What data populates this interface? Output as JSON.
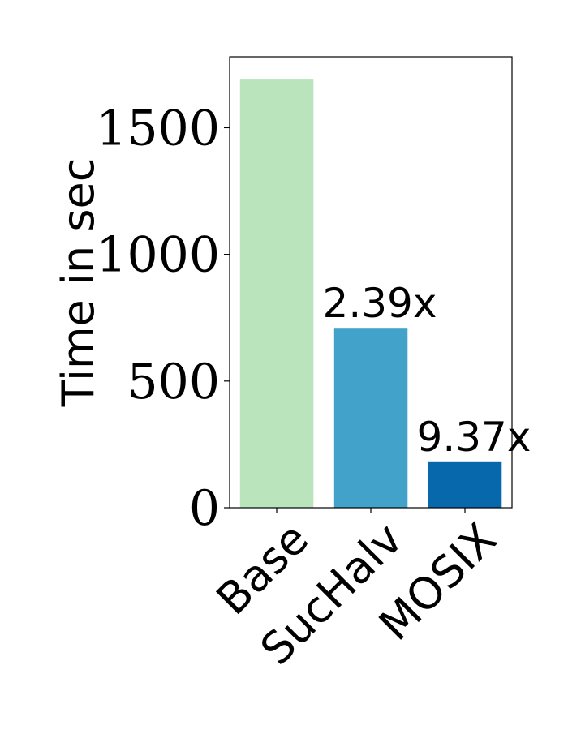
{
  "chart_data": {
    "type": "bar",
    "categories": [
      "Base",
      "SucHalv",
      "MOSIX"
    ],
    "values": [
      1690,
      707,
      180
    ],
    "bar_labels": [
      "",
      "2.39x",
      "9.37x"
    ],
    "colors": [
      "#bae4bc",
      "#43a2ca",
      "#0868ac"
    ],
    "ylabel": "Time in sec",
    "xlabel": "",
    "title": "",
    "ylim": [
      0,
      1780
    ],
    "yticks": [
      0,
      500,
      1000,
      1500
    ],
    "ytick_labels": [
      "0",
      "500",
      "1000",
      "1500"
    ],
    "grid": false
  }
}
